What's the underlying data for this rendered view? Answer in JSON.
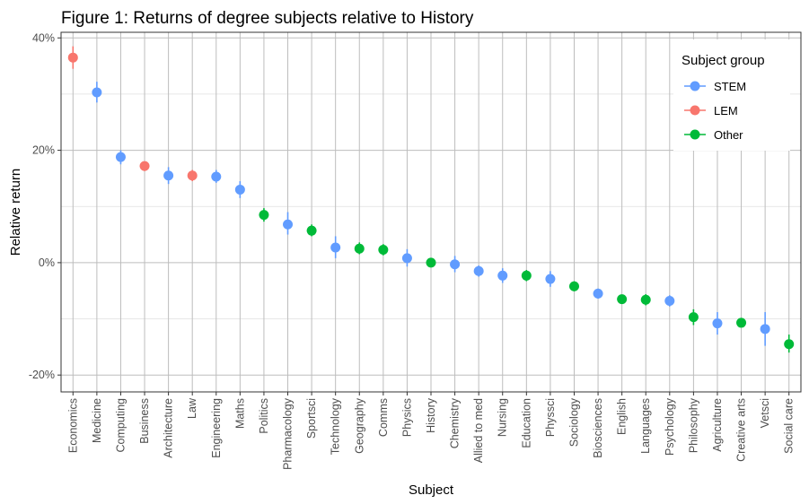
{
  "chart_data": {
    "type": "scatter",
    "title": "Figure 1: Returns of degree subjects relative to History",
    "xlabel": "Subject",
    "ylabel": "Relative return",
    "ylim": [
      -0.23,
      0.41
    ],
    "yticks": [
      -0.2,
      0,
      0.2,
      0.4
    ],
    "ytick_labels": [
      "-20%",
      "0%",
      "20%",
      "40%"
    ],
    "grid": true,
    "legend": {
      "title": "Subject group",
      "placement": "top-right",
      "entries": [
        {
          "name": "STEM",
          "color": "#619CFF"
        },
        {
          "name": "LEM",
          "color": "#F8766D"
        },
        {
          "name": "Other",
          "color": "#00BA38"
        }
      ]
    },
    "points": [
      {
        "subject": "Economics",
        "group": "LEM",
        "value": 0.365,
        "lo": 0.345,
        "hi": 0.385
      },
      {
        "subject": "Medicine",
        "group": "STEM",
        "value": 0.303,
        "lo": 0.285,
        "hi": 0.322
      },
      {
        "subject": "Computing",
        "group": "STEM",
        "value": 0.188,
        "lo": 0.175,
        "hi": 0.2
      },
      {
        "subject": "Business",
        "group": "LEM",
        "value": 0.172,
        "lo": 0.163,
        "hi": 0.18
      },
      {
        "subject": "Architecture",
        "group": "STEM",
        "value": 0.155,
        "lo": 0.14,
        "hi": 0.17
      },
      {
        "subject": "Law",
        "group": "LEM",
        "value": 0.155,
        "lo": 0.145,
        "hi": 0.165
      },
      {
        "subject": "Engineering",
        "group": "STEM",
        "value": 0.153,
        "lo": 0.142,
        "hi": 0.165
      },
      {
        "subject": "Maths",
        "group": "STEM",
        "value": 0.13,
        "lo": 0.115,
        "hi": 0.145
      },
      {
        "subject": "Politics",
        "group": "Other",
        "value": 0.085,
        "lo": 0.073,
        "hi": 0.097
      },
      {
        "subject": "Pharmacology",
        "group": "STEM",
        "value": 0.068,
        "lo": 0.05,
        "hi": 0.09
      },
      {
        "subject": "Sportsci",
        "group": "Other",
        "value": 0.057,
        "lo": 0.047,
        "hi": 0.068
      },
      {
        "subject": "Technology",
        "group": "STEM",
        "value": 0.027,
        "lo": 0.008,
        "hi": 0.047
      },
      {
        "subject": "Geography",
        "group": "Other",
        "value": 0.025,
        "lo": 0.015,
        "hi": 0.036
      },
      {
        "subject": "Comms",
        "group": "Other",
        "value": 0.023,
        "lo": 0.013,
        "hi": 0.033
      },
      {
        "subject": "Physics",
        "group": "STEM",
        "value": 0.008,
        "lo": -0.007,
        "hi": 0.024
      },
      {
        "subject": "History",
        "group": "Other",
        "value": 0.0,
        "lo": 0.0,
        "hi": 0.0
      },
      {
        "subject": "Chemistry",
        "group": "STEM",
        "value": -0.003,
        "lo": -0.017,
        "hi": 0.012
      },
      {
        "subject": "Allied to med",
        "group": "STEM",
        "value": -0.015,
        "lo": -0.025,
        "hi": -0.005
      },
      {
        "subject": "Nursing",
        "group": "STEM",
        "value": -0.023,
        "lo": -0.036,
        "hi": -0.01
      },
      {
        "subject": "Education",
        "group": "Other",
        "value": -0.023,
        "lo": -0.033,
        "hi": -0.013
      },
      {
        "subject": "Physsci",
        "group": "STEM",
        "value": -0.029,
        "lo": -0.043,
        "hi": -0.015
      },
      {
        "subject": "Sociology",
        "group": "Other",
        "value": -0.042,
        "lo": -0.051,
        "hi": -0.033
      },
      {
        "subject": "Biosciences",
        "group": "STEM",
        "value": -0.055,
        "lo": -0.064,
        "hi": -0.046
      },
      {
        "subject": "English",
        "group": "Other",
        "value": -0.065,
        "lo": -0.073,
        "hi": -0.057
      },
      {
        "subject": "Languages",
        "group": "Other",
        "value": -0.066,
        "lo": -0.076,
        "hi": -0.056
      },
      {
        "subject": "Psychology",
        "group": "STEM",
        "value": -0.068,
        "lo": -0.078,
        "hi": -0.058
      },
      {
        "subject": "Philosophy",
        "group": "Other",
        "value": -0.097,
        "lo": -0.111,
        "hi": -0.083
      },
      {
        "subject": "Agriculture",
        "group": "STEM",
        "value": -0.108,
        "lo": -0.128,
        "hi": -0.088
      },
      {
        "subject": "Creative arts",
        "group": "Other",
        "value": -0.107,
        "lo": -0.114,
        "hi": -0.1
      },
      {
        "subject": "Vetsci",
        "group": "STEM",
        "value": -0.118,
        "lo": -0.148,
        "hi": -0.088
      },
      {
        "subject": "Social care",
        "group": "Other",
        "value": -0.145,
        "lo": -0.16,
        "hi": -0.128
      }
    ]
  }
}
